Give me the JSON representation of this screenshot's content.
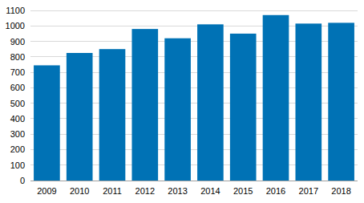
{
  "chart_data": {
    "type": "bar",
    "categories": [
      "2009",
      "2010",
      "2011",
      "2012",
      "2013",
      "2014",
      "2015",
      "2016",
      "2017",
      "2018"
    ],
    "values": [
      745,
      825,
      850,
      980,
      920,
      1010,
      950,
      1070,
      1015,
      1020
    ],
    "color": "#0072b5",
    "ylim": [
      0,
      1100
    ],
    "yticks": [
      0,
      100,
      200,
      300,
      400,
      500,
      600,
      700,
      800,
      900,
      1000,
      1100
    ],
    "grid": true
  }
}
